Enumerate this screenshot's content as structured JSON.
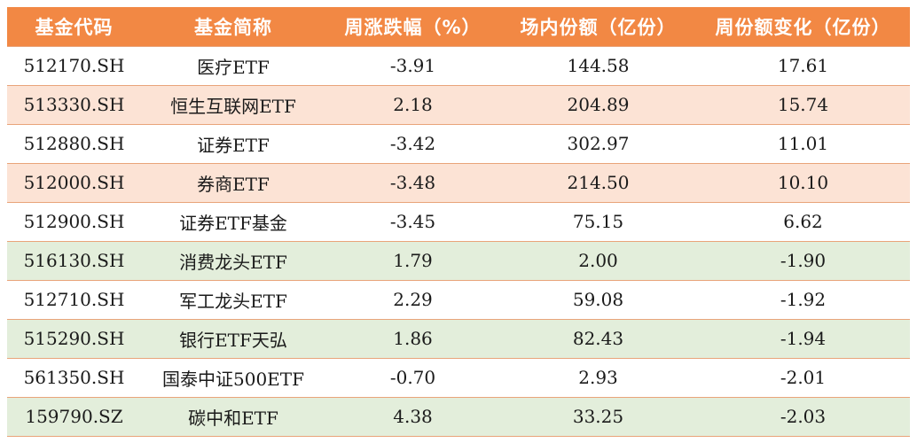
{
  "colors": {
    "header_bg": "#F28844",
    "header_text": "#FFFFFF",
    "row_white": "#FFFFFF",
    "row_peach": "#FCE3D5",
    "row_green": "#E3EEDB",
    "border": "#E9A47A"
  },
  "table": {
    "headers": [
      "基金代码",
      "基金简称",
      "周涨跌幅（%）",
      "场内份额（亿份）",
      "周份额变化（亿份）"
    ],
    "rows": [
      {
        "highlight": "white",
        "cells": [
          "512170.SH",
          "医疗ETF",
          "-3.91",
          "144.58",
          "17.61"
        ]
      },
      {
        "highlight": "peach",
        "cells": [
          "513330.SH",
          "恒生互联网ETF",
          "2.18",
          "204.89",
          "15.74"
        ]
      },
      {
        "highlight": "white",
        "cells": [
          "512880.SH",
          "证券ETF",
          "-3.42",
          "302.97",
          "11.01"
        ]
      },
      {
        "highlight": "peach",
        "cells": [
          "512000.SH",
          "券商ETF",
          "-3.48",
          "214.50",
          "10.10"
        ]
      },
      {
        "highlight": "white",
        "cells": [
          "512900.SH",
          "证券ETF基金",
          "-3.45",
          "75.15",
          "6.62"
        ]
      },
      {
        "highlight": "green",
        "cells": [
          "516130.SH",
          "消费龙头ETF",
          "1.79",
          "2.00",
          "-1.90"
        ]
      },
      {
        "highlight": "white",
        "cells": [
          "512710.SH",
          "军工龙头ETF",
          "2.29",
          "59.08",
          "-1.92"
        ]
      },
      {
        "highlight": "green",
        "cells": [
          "515290.SH",
          "银行ETF天弘",
          "1.86",
          "82.43",
          "-1.94"
        ]
      },
      {
        "highlight": "white",
        "cells": [
          "561350.SH",
          "国泰中证500ETF",
          "-0.70",
          "2.93",
          "-2.01"
        ]
      },
      {
        "highlight": "green",
        "cells": [
          "159790.SZ",
          "碳中和ETF",
          "4.38",
          "33.25",
          "-2.03"
        ]
      }
    ]
  }
}
